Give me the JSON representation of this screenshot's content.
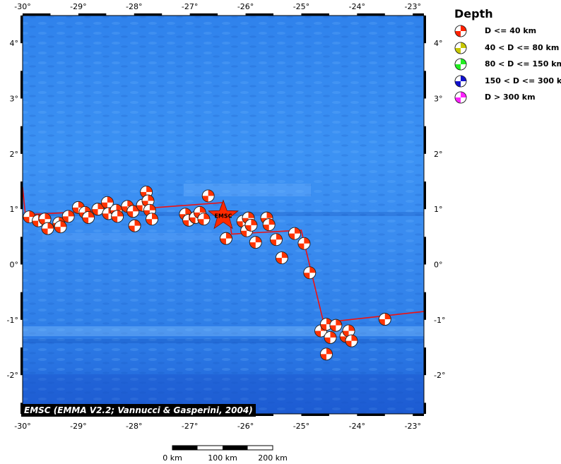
{
  "legend": {
    "title": "Depth",
    "items": [
      {
        "label": "D <= 40 km",
        "color": "#ff2200"
      },
      {
        "label": "40 < D <= 80 km",
        "color": "#c8c800"
      },
      {
        "label": "80 < D <= 150 km",
        "color": "#22ee22"
      },
      {
        "label": "150 < D <= 300 km",
        "color": "#1111cc"
      },
      {
        "label": "D > 300 km",
        "color": "#ff22ff"
      }
    ]
  },
  "credit": "EMSC (EMMA V2.2; Vannucci & Gasperini, 2004)",
  "epicenter_label": "EMSC",
  "map": {
    "lon_ticks": [
      {
        "value": -30,
        "label": "-30°"
      },
      {
        "value": -29,
        "label": "-29°"
      },
      {
        "value": -28,
        "label": "-28°"
      },
      {
        "value": -27,
        "label": "-27°"
      },
      {
        "value": -26,
        "label": "-26°"
      },
      {
        "value": -25,
        "label": "-25°"
      },
      {
        "value": -24,
        "label": "-24°"
      },
      {
        "value": -23,
        "label": "-23°"
      }
    ],
    "lat_ticks": [
      {
        "value": 4,
        "label": "4°"
      },
      {
        "value": 3,
        "label": "3°"
      },
      {
        "value": 2,
        "label": "2°"
      },
      {
        "value": 1,
        "label": "1°"
      },
      {
        "value": 0,
        "label": "0°"
      },
      {
        "value": -1,
        "label": "-1°"
      },
      {
        "value": -2,
        "label": "-2°"
      }
    ],
    "lon_range": [
      -30.0,
      -22.8
    ],
    "lat_range": [
      -2.7,
      4.5
    ],
    "colors": {
      "ocean_light": "#3a8cf0",
      "ocean_dark": "#1a5ad8",
      "plate_boundary": "#ee1111",
      "event_fill": "#ff3300",
      "epicenter": "#ff2a00"
    },
    "epicenter": {
      "lon": -26.4,
      "lat": 0.88
    },
    "plate_boundary": [
      [
        [
          -30.0,
          1.4
        ],
        [
          -29.95,
          0.9
        ],
        [
          -28.0,
          1.0
        ],
        [
          -26.4,
          1.12
        ],
        [
          -26.3,
          0.88
        ],
        [
          -26.25,
          0.55
        ],
        [
          -25.0,
          0.62
        ],
        [
          -24.95,
          0.4
        ],
        [
          -24.6,
          -1.05
        ],
        [
          -22.8,
          -0.85
        ]
      ]
    ],
    "events": [
      {
        "lon": -29.88,
        "lat": 0.86
      },
      {
        "lon": -29.72,
        "lat": 0.79
      },
      {
        "lon": -29.6,
        "lat": 0.82
      },
      {
        "lon": -29.55,
        "lat": 0.65
      },
      {
        "lon": -29.35,
        "lat": 0.75
      },
      {
        "lon": -29.32,
        "lat": 0.68
      },
      {
        "lon": -29.18,
        "lat": 0.87
      },
      {
        "lon": -29.0,
        "lat": 1.03
      },
      {
        "lon": -28.88,
        "lat": 0.94
      },
      {
        "lon": -28.82,
        "lat": 0.85
      },
      {
        "lon": -28.65,
        "lat": 1.0
      },
      {
        "lon": -28.48,
        "lat": 1.12
      },
      {
        "lon": -28.46,
        "lat": 0.92
      },
      {
        "lon": -28.32,
        "lat": 0.98
      },
      {
        "lon": -28.3,
        "lat": 0.87
      },
      {
        "lon": -28.12,
        "lat": 1.05
      },
      {
        "lon": -28.02,
        "lat": 0.96
      },
      {
        "lon": -27.99,
        "lat": 0.7
      },
      {
        "lon": -27.85,
        "lat": 1.07
      },
      {
        "lon": -27.78,
        "lat": 1.31
      },
      {
        "lon": -27.75,
        "lat": 1.15
      },
      {
        "lon": -27.72,
        "lat": 0.98
      },
      {
        "lon": -27.68,
        "lat": 0.82
      },
      {
        "lon": -27.08,
        "lat": 0.91
      },
      {
        "lon": -27.02,
        "lat": 0.8
      },
      {
        "lon": -26.9,
        "lat": 0.85
      },
      {
        "lon": -26.82,
        "lat": 0.94
      },
      {
        "lon": -26.75,
        "lat": 0.82
      },
      {
        "lon": -26.67,
        "lat": 1.24
      },
      {
        "lon": -26.35,
        "lat": 0.47
      },
      {
        "lon": -26.05,
        "lat": 0.78
      },
      {
        "lon": -25.98,
        "lat": 0.61
      },
      {
        "lon": -25.95,
        "lat": 0.84
      },
      {
        "lon": -25.9,
        "lat": 0.71
      },
      {
        "lon": -25.82,
        "lat": 0.4
      },
      {
        "lon": -25.62,
        "lat": 0.84
      },
      {
        "lon": -25.58,
        "lat": 0.72
      },
      {
        "lon": -25.45,
        "lat": 0.45
      },
      {
        "lon": -25.35,
        "lat": 0.12
      },
      {
        "lon": -25.12,
        "lat": 0.56
      },
      {
        "lon": -24.95,
        "lat": 0.38
      },
      {
        "lon": -24.85,
        "lat": -0.15
      },
      {
        "lon": -24.65,
        "lat": -1.2
      },
      {
        "lon": -24.55,
        "lat": -1.08
      },
      {
        "lon": -24.48,
        "lat": -1.32
      },
      {
        "lon": -24.38,
        "lat": -1.1
      },
      {
        "lon": -24.2,
        "lat": -1.3
      },
      {
        "lon": -24.15,
        "lat": -1.2
      },
      {
        "lon": -24.1,
        "lat": -1.38
      },
      {
        "lon": -24.55,
        "lat": -1.62
      },
      {
        "lon": -23.5,
        "lat": -0.99
      }
    ]
  },
  "scale_bar": {
    "labels": [
      "0 km",
      "100 km",
      "200 km"
    ]
  }
}
